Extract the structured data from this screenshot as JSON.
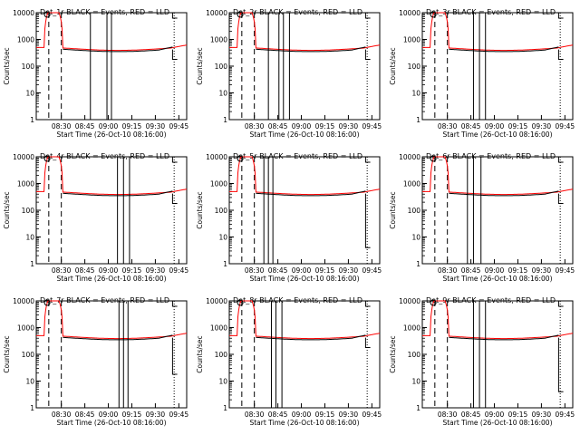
{
  "colors": {
    "events": "#000000",
    "lld": "#ff0000",
    "background": "#ffffff"
  },
  "chart_data": [
    {
      "type": "line",
      "title": "Det_1r BLACK = Events, RED = LLD",
      "xlabel": "Start Time (26-Oct-10 08:16:00)",
      "ylabel": "Counts/sec",
      "yscale": "log",
      "ylim": [
        1,
        10000
      ],
      "ytick_labels": [
        "1",
        "10",
        "100",
        "1000",
        "10000"
      ],
      "xtick_labels": [
        "08:30",
        "08:45",
        "09:00",
        "09:15",
        "09:30",
        "09:45"
      ]
    },
    {
      "type": "line",
      "title": "Det_2r BLACK = Events, RED = LLD",
      "xlabel": "Start Time (26-Oct-10 08:16:00)",
      "ylabel": "Counts/sec",
      "yscale": "log",
      "ylim": [
        1,
        10000
      ],
      "ytick_labels": [
        "1",
        "10",
        "100",
        "1000",
        "10000"
      ],
      "xtick_labels": [
        "08:30",
        "08:45",
        "09:00",
        "09:15",
        "09:30",
        "09:45"
      ]
    },
    {
      "type": "line",
      "title": "Det_3r BLACK = Events, RED = LLD",
      "xlabel": "Start Time (26-Oct-10 08:16:00)",
      "ylabel": "Counts/sec",
      "yscale": "log",
      "ylim": [
        1,
        10000
      ],
      "ytick_labels": [
        "1",
        "10",
        "100",
        "1000",
        "10000"
      ],
      "xtick_labels": [
        "08:30",
        "08:45",
        "09:00",
        "09:15",
        "09:30",
        "09:45"
      ]
    },
    {
      "type": "line",
      "title": "Det_4r BLACK = Events, RED = LLD",
      "xlabel": "Start Time (26-Oct-10 08:16:00)",
      "ylabel": "Counts/sec",
      "yscale": "log",
      "ylim": [
        1,
        10000
      ],
      "ytick_labels": [
        "1",
        "10",
        "100",
        "1000",
        "10000"
      ],
      "xtick_labels": [
        "08:30",
        "08:45",
        "09:00",
        "09:15",
        "09:30",
        "09:45"
      ]
    },
    {
      "type": "line",
      "title": "Det_5r BLACK = Events, RED = LLD",
      "xlabel": "Start Time (26-Oct-10 08:16:00)",
      "ylabel": "Counts/sec",
      "yscale": "log",
      "ylim": [
        1,
        10000
      ],
      "ytick_labels": [
        "1",
        "10",
        "100",
        "1000",
        "10000"
      ],
      "xtick_labels": [
        "08:30",
        "08:45",
        "09:00",
        "09:15",
        "09:30",
        "09:45"
      ]
    },
    {
      "type": "line",
      "title": "Det_6r BLACK = Events, RED = LLD",
      "xlabel": "Start Time (26-Oct-10 08:16:00)",
      "ylabel": "Counts/sec",
      "yscale": "log",
      "ylim": [
        1,
        10000
      ],
      "ytick_labels": [
        "1",
        "10",
        "100",
        "1000",
        "10000"
      ],
      "xtick_labels": [
        "08:30",
        "08:45",
        "09:00",
        "09:15",
        "09:30",
        "09:45"
      ]
    },
    {
      "type": "line",
      "title": "Det_7r BLACK = Events, RED = LLD",
      "xlabel": "Start Time (26-Oct-10 08:16:00)",
      "ylabel": "Counts/sec",
      "yscale": "log",
      "ylim": [
        1,
        10000
      ],
      "ytick_labels": [
        "1",
        "10",
        "100",
        "1000",
        "10000"
      ],
      "xtick_labels": [
        "08:30",
        "08:45",
        "09:00",
        "09:15",
        "09:30",
        "09:45"
      ]
    },
    {
      "type": "line",
      "title": "Det_8r BLACK = Events, RED = LLD",
      "xlabel": "Start Time (26-Oct-10 08:16:00)",
      "ylabel": "Counts/sec",
      "yscale": "log",
      "ylim": [
        1,
        10000
      ],
      "ytick_labels": [
        "1",
        "10",
        "100",
        "1000",
        "10000"
      ],
      "xtick_labels": [
        "08:30",
        "08:45",
        "09:00",
        "09:15",
        "09:30",
        "09:45"
      ]
    },
    {
      "type": "line",
      "title": "Det_9r BLACK = Events, RED = LLD",
      "xlabel": "Start Time (26-Oct-10 08:16:00)",
      "ylabel": "Counts/sec",
      "yscale": "log",
      "ylim": [
        1,
        10000
      ],
      "ytick_labels": [
        "1",
        "10",
        "100",
        "1000",
        "10000"
      ],
      "xtick_labels": [
        "08:30",
        "08:45",
        "09:00",
        "09:15",
        "09:30",
        "09:45"
      ]
    }
  ]
}
